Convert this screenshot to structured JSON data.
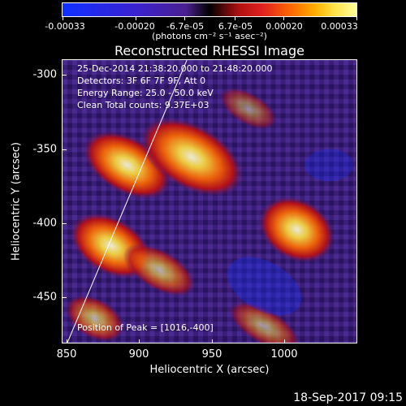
{
  "colorbar": {
    "ticks": [
      "-0.00033",
      "-0.00020",
      "-6.7e-05",
      "6.7e-05",
      "0.00020",
      "0.00033"
    ],
    "unit": "(photons cm⁻² s⁻¹ asec⁻²)"
  },
  "title": "Reconstructed RHESSI Image",
  "info": {
    "time": "25-Dec-2014 21:38:20.000 to 21:48:20.000",
    "detectors": "Detectors: 3F 6F 7F 9F, Att 0",
    "energy": "Energy Range: 25.0 - 50.0 keV",
    "clean": "Clean    Total counts: 9.37E+03"
  },
  "axes": {
    "xlabel": "Heliocentric X (arcsec)",
    "ylabel": "Heliocentric Y (arcsec)",
    "xticks": [
      "850",
      "900",
      "950",
      "1000"
    ],
    "yticks": [
      "-300",
      "-350",
      "-400",
      "-450"
    ]
  },
  "peak": "Position of Peak = [1016,-400]",
  "footer": "18-Sep-2017 09:15"
}
